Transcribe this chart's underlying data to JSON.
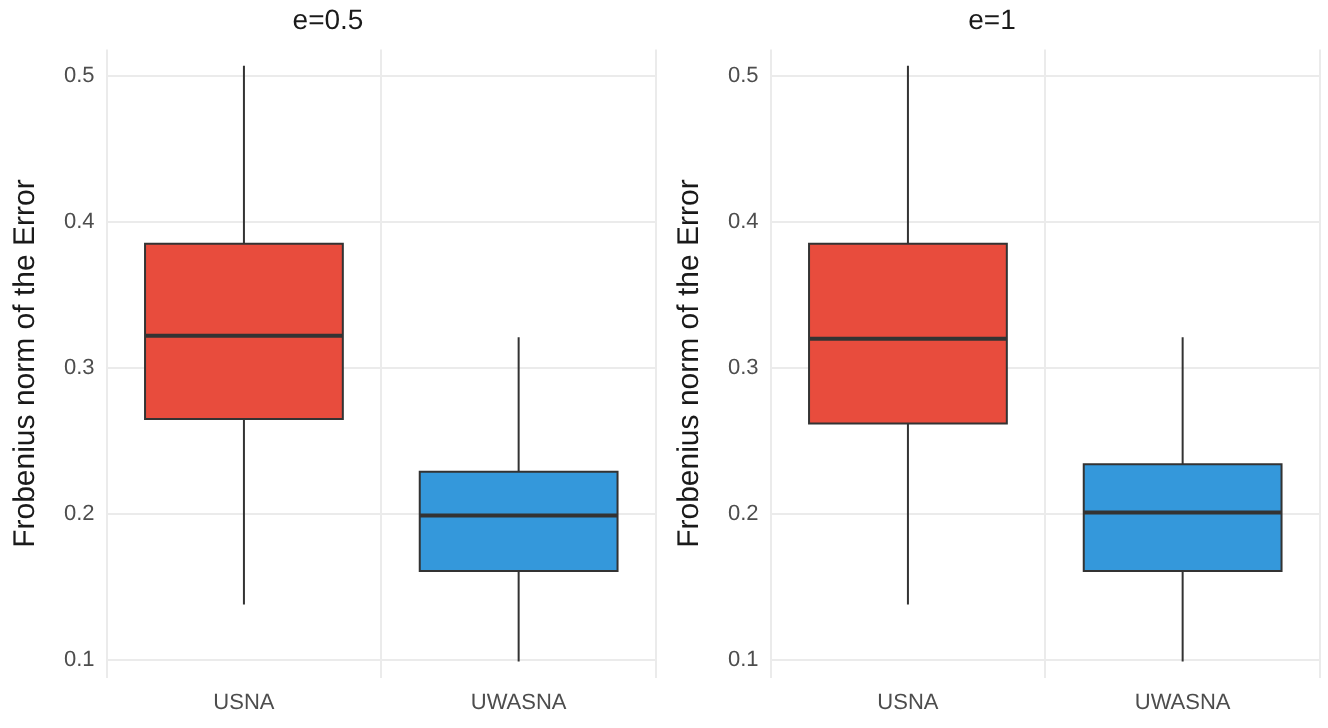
{
  "chart_data": [
    {
      "type": "box",
      "title": "e=0.5",
      "ylabel": "Frobenius norm of the Error",
      "categories": [
        "USNA",
        "UWASNA"
      ],
      "colors": [
        "#e84c3d",
        "#3498db"
      ],
      "boxes": [
        {
          "low": 0.138,
          "q1": 0.265,
          "median": 0.322,
          "q3": 0.385,
          "high": 0.507
        },
        {
          "low": 0.099,
          "q1": 0.161,
          "median": 0.199,
          "q3": 0.229,
          "high": 0.321
        }
      ],
      "ylim": [
        0.088,
        0.518
      ],
      "yticks": [
        0.1,
        0.2,
        0.3,
        0.4,
        0.5
      ],
      "grid": true
    },
    {
      "type": "box",
      "title": "e=1",
      "ylabel": "Frobenius norm of the Error",
      "categories": [
        "USNA",
        "UWASNA"
      ],
      "colors": [
        "#e84c3d",
        "#3498db"
      ],
      "boxes": [
        {
          "low": 0.138,
          "q1": 0.262,
          "median": 0.32,
          "q3": 0.385,
          "high": 0.507
        },
        {
          "low": 0.099,
          "q1": 0.161,
          "median": 0.201,
          "q3": 0.234,
          "high": 0.321
        }
      ],
      "ylim": [
        0.088,
        0.518
      ],
      "yticks": [
        0.1,
        0.2,
        0.3,
        0.4,
        0.5
      ],
      "grid": true
    }
  ]
}
